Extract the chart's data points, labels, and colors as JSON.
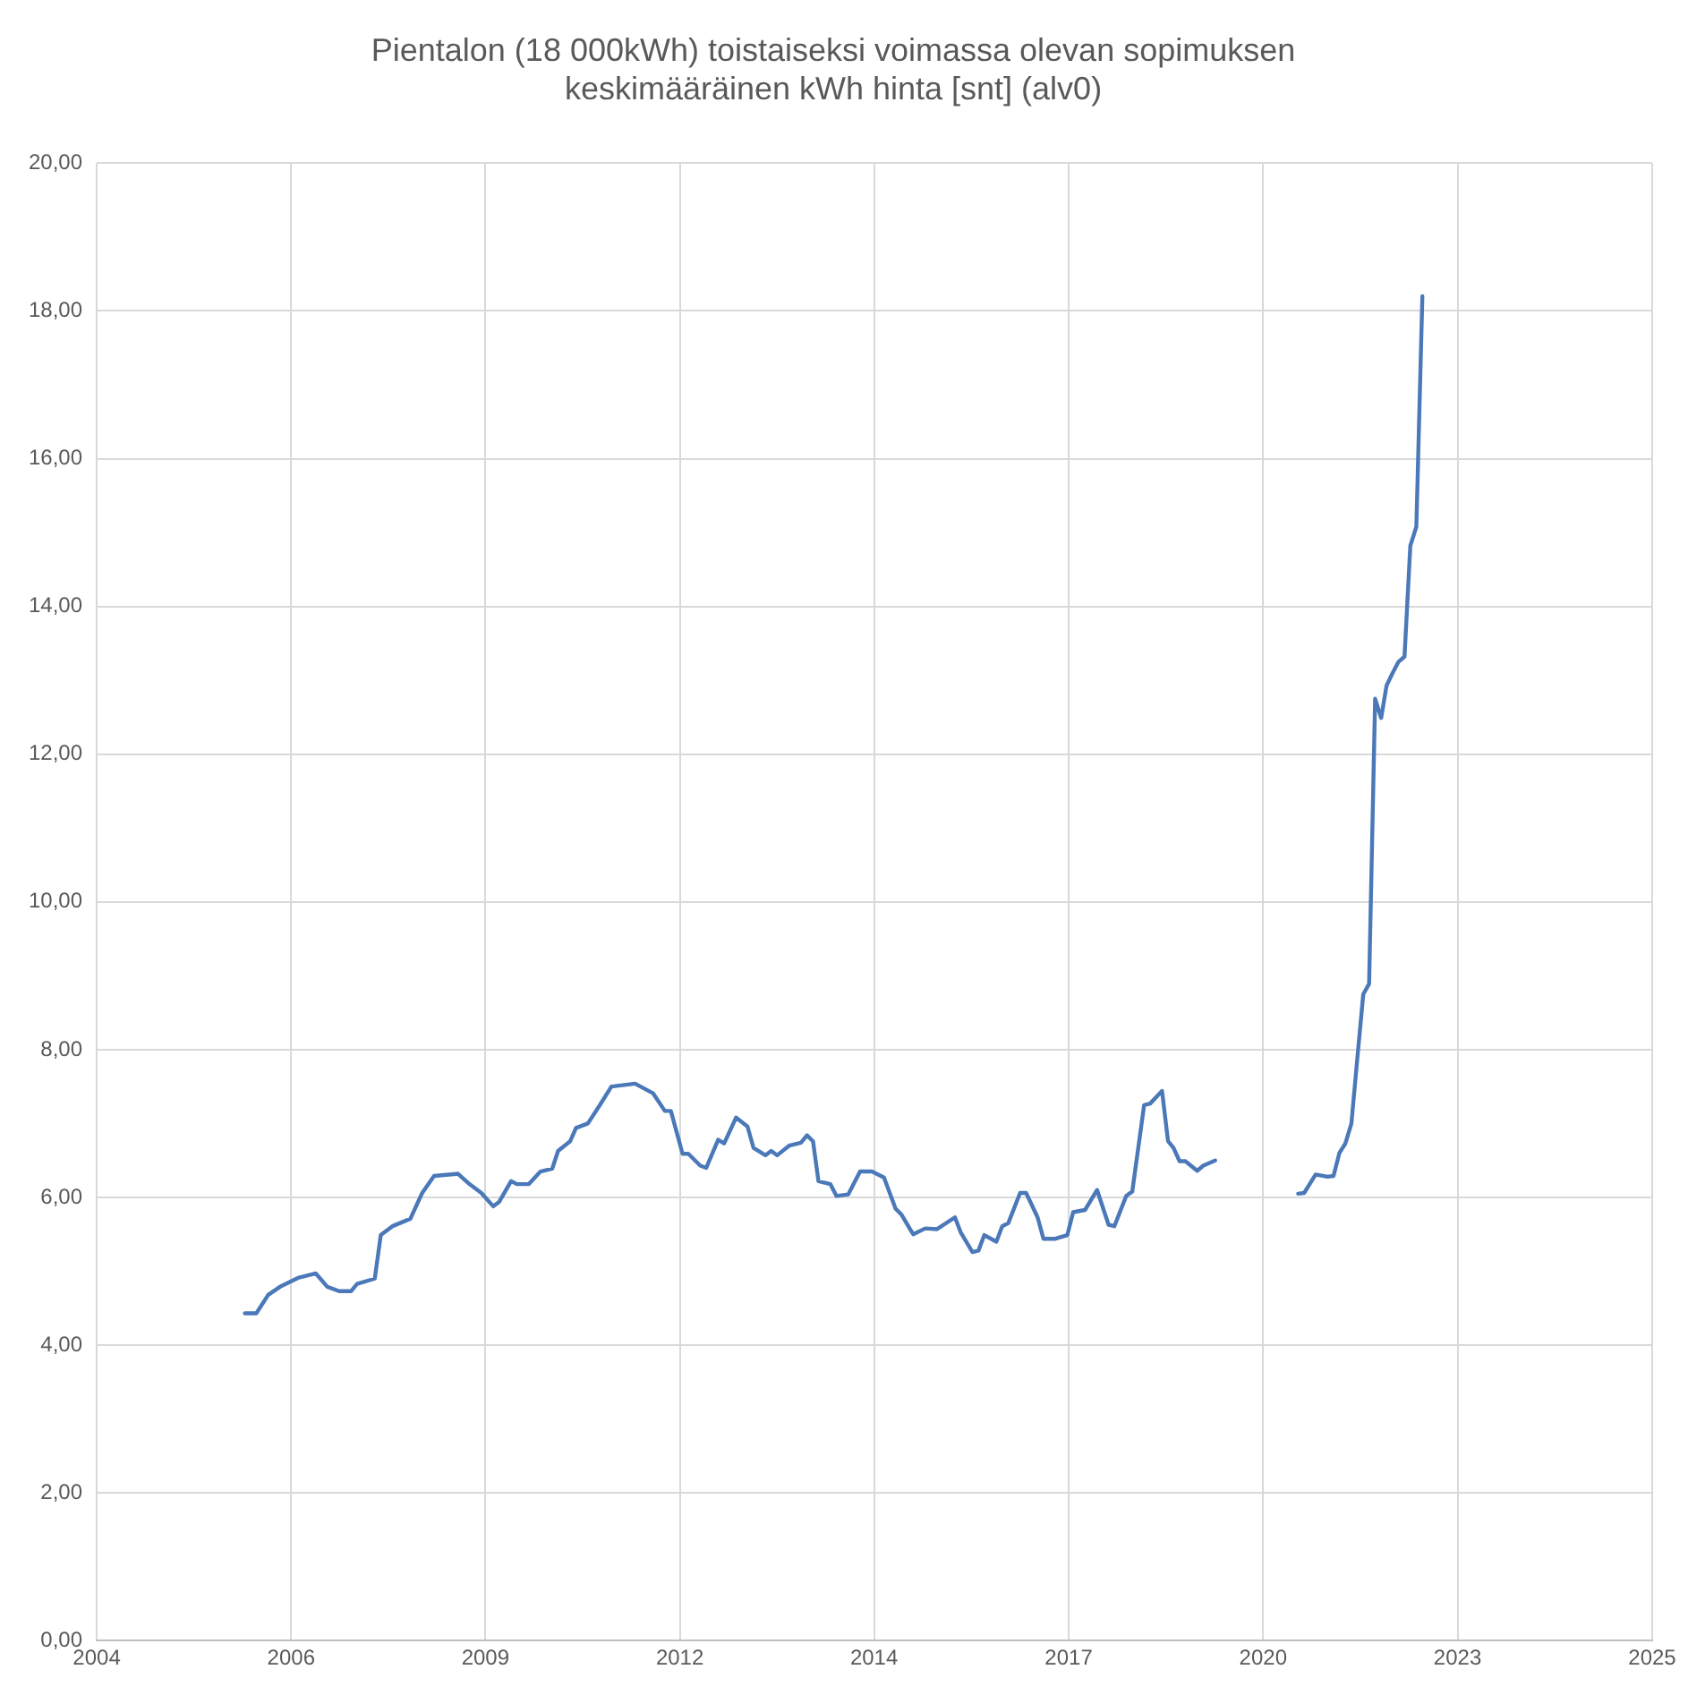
{
  "chart_data": {
    "type": "line",
    "title": "Pientalon (18 000kWh) toistaiseksi voimassa olevan sopimuksen\nkeskimääräinen kWh hinta [snt] (alv0)",
    "x": [
      "2006-02",
      "2006-04",
      "2006-06",
      "2006-08",
      "2006-11",
      "2007-02",
      "2007-04",
      "2007-06",
      "2007-08",
      "2007-09",
      "2007-12",
      "2008-01",
      "2008-03",
      "2008-06",
      "2008-08",
      "2008-10",
      "2009-02",
      "2009-04",
      "2009-06",
      "2009-08",
      "2009-09",
      "2009-11",
      "2009-12",
      "2010-02",
      "2010-04",
      "2010-06",
      "2010-07",
      "2010-09",
      "2010-10",
      "2010-12",
      "2011-02",
      "2011-04",
      "2011-08",
      "2011-11",
      "2012-01",
      "2012-02",
      "2012-04",
      "2012-05",
      "2012-07",
      "2012-08",
      "2012-10",
      "2012-11",
      "2013-01",
      "2013-03",
      "2013-04",
      "2013-06",
      "2013-07",
      "2013-08",
      "2013-10",
      "2013-12",
      "2014-01",
      "2014-02",
      "2014-03",
      "2014-05",
      "2014-06",
      "2014-08",
      "2014-10",
      "2014-12",
      "2015-02",
      "2015-04",
      "2015-05",
      "2015-07",
      "2015-09",
      "2015-11",
      "2016-02",
      "2016-03",
      "2016-05",
      "2016-06",
      "2016-07",
      "2016-09",
      "2016-10",
      "2016-11",
      "2017-01",
      "2017-02",
      "2017-04",
      "2017-05",
      "2017-07",
      "2017-09",
      "2017-10",
      "2017-12",
      "2018-02",
      "2018-04",
      "2018-05",
      "2018-07",
      "2018-08",
      "2018-10",
      "2018-11",
      "2019-01",
      "2019-02",
      "2019-03",
      "2019-04",
      "2019-05",
      "2019-07",
      "2019-08",
      "2019-10",
      "2020-03",
      "2020-12",
      "2021-01",
      "2021-03",
      "2021-05",
      "2021-06",
      "2021-07",
      "2021-08",
      "2021-09",
      "2021-10",
      "2021-11",
      "2021-12",
      "2022-01",
      "2022-02",
      "2022-03",
      "2022-04",
      "2022-05",
      "2022-06",
      "2022-07",
      "2022-08",
      "2022-09"
    ],
    "series": [
      {
        "color": "#4a78b8",
        "values": [
          4.43,
          4.43,
          4.68,
          4.79,
          4.91,
          4.97,
          4.79,
          4.73,
          4.73,
          4.83,
          4.9,
          5.49,
          5.61,
          5.71,
          6.06,
          6.29,
          6.32,
          6.18,
          6.06,
          5.88,
          5.94,
          6.22,
          6.18,
          6.18,
          6.35,
          6.39,
          6.63,
          6.76,
          6.94,
          7.0,
          7.25,
          7.5,
          7.54,
          7.41,
          7.17,
          7.17,
          6.59,
          6.59,
          6.43,
          6.4,
          6.78,
          6.73,
          7.08,
          6.96,
          6.67,
          6.57,
          6.63,
          6.57,
          6.7,
          6.74,
          6.84,
          6.76,
          6.22,
          6.18,
          6.02,
          6.04,
          6.35,
          6.35,
          6.27,
          5.85,
          5.77,
          5.5,
          5.58,
          5.57,
          5.73,
          5.53,
          5.26,
          5.28,
          5.49,
          5.4,
          5.61,
          5.65,
          6.06,
          6.06,
          5.73,
          5.44,
          5.44,
          5.49,
          5.8,
          5.83,
          6.1,
          5.63,
          5.61,
          6.02,
          6.08,
          7.25,
          7.27,
          7.44,
          6.76,
          6.67,
          6.49,
          6.49,
          6.36,
          6.43,
          6.5,
          null,
          6.05,
          6.06,
          6.31,
          6.28,
          6.29,
          6.6,
          6.73,
          7.0,
          7.87,
          8.75,
          8.89,
          12.75,
          12.49,
          12.93,
          13.1,
          13.25,
          13.32,
          14.82,
          15.08,
          18.2
        ]
      }
    ],
    "xlim": [
      "2004-01-01",
      "2025-11-26"
    ],
    "xticks": [
      {
        "value": "2004-01-01",
        "label": "2004"
      },
      {
        "value": "2006-09-27",
        "label": "2006"
      },
      {
        "value": "2009-06-22",
        "label": "2009"
      },
      {
        "value": "2012-03-18",
        "label": "2012"
      },
      {
        "value": "2014-12-12",
        "label": "2014"
      },
      {
        "value": "2017-09-08",
        "label": "2017"
      },
      {
        "value": "2020-06-04",
        "label": "2020"
      },
      {
        "value": "2023-03-01",
        "label": "2023"
      },
      {
        "value": "2025-11-26",
        "label": "2025"
      }
    ],
    "ylim": [
      0,
      20
    ],
    "yticks": [
      {
        "value": 0,
        "label": "0,00"
      },
      {
        "value": 2,
        "label": "2,00"
      },
      {
        "value": 4,
        "label": "4,00"
      },
      {
        "value": 6,
        "label": "6,00"
      },
      {
        "value": 8,
        "label": "8,00"
      },
      {
        "value": 10,
        "label": "10,00"
      },
      {
        "value": 12,
        "label": "12,00"
      },
      {
        "value": 14,
        "label": "14,00"
      },
      {
        "value": 16,
        "label": "16,00"
      },
      {
        "value": 18,
        "label": "18,00"
      },
      {
        "value": 20,
        "label": "20,00"
      }
    ],
    "grid": true,
    "legend": false,
    "marker": "none",
    "line_style": "solid"
  }
}
